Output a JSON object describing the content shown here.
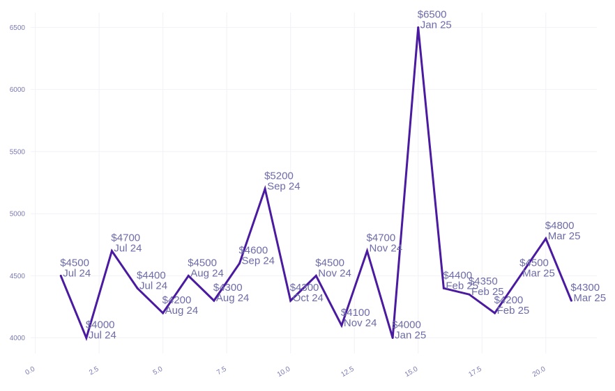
{
  "chart_data": {
    "type": "line",
    "title": "",
    "xlabel": "",
    "ylabel": "",
    "xlim": [
      -1,
      22
    ],
    "ylim": [
      3875,
      6620
    ],
    "grid": true,
    "legend": "none",
    "colors": {
      "line": "#4a1aa0",
      "tick_text": "#7a79b2",
      "label_text": "#6d6ba8",
      "grid": "#f1f1f6"
    },
    "x_ticks": [
      0.0,
      2.5,
      5.0,
      7.5,
      10.0,
      12.5,
      15.0,
      17.5,
      20.0
    ],
    "x_tick_labels": [
      "0.0",
      "2.5",
      "5.0",
      "7.5",
      "10.0",
      "12.5",
      "15.0",
      "17.5",
      "20.0"
    ],
    "y_ticks": [
      4000,
      4500,
      5000,
      5500,
      6000,
      6500
    ],
    "y_tick_labels": [
      "4000",
      "4500",
      "5000",
      "5500",
      "6000",
      "6500"
    ],
    "series": [
      {
        "x": [
          1,
          2,
          3,
          4,
          5,
          6,
          7,
          8,
          9,
          10,
          11,
          12,
          13,
          14,
          15,
          16,
          17,
          18,
          19,
          20,
          21
        ],
        "y": [
          4500,
          4000,
          4700,
          4400,
          4200,
          4500,
          4300,
          4600,
          5200,
          4300,
          4500,
          4100,
          4700,
          4000,
          6500,
          4400,
          4350,
          4200,
          4500,
          4800,
          4300
        ],
        "value_labels": [
          "$4500",
          "$4000",
          "$4700",
          "$4400",
          "$4200",
          "$4500",
          "$4300",
          "$4600",
          "$5200",
          "$4300",
          "$4500",
          "$4100",
          "$4700",
          "$4000",
          "$6500",
          "$4400",
          "$4350",
          "$4200",
          "$4500",
          "$4800",
          "$4300"
        ],
        "date_labels": [
          "Jul 24",
          "Jul 24",
          "Jul 24",
          "Jul 24",
          "Aug 24",
          "Aug 24",
          "Aug 24",
          "Sep 24",
          "Sep 24",
          "Oct 24",
          "Nov 24",
          "Nov 24",
          "Nov 24",
          "Jan 25",
          "Jan 25",
          "Feb 25",
          "Feb 25",
          "Feb 25",
          "Mar 25",
          "Mar 25",
          "Mar 25"
        ]
      }
    ]
  }
}
